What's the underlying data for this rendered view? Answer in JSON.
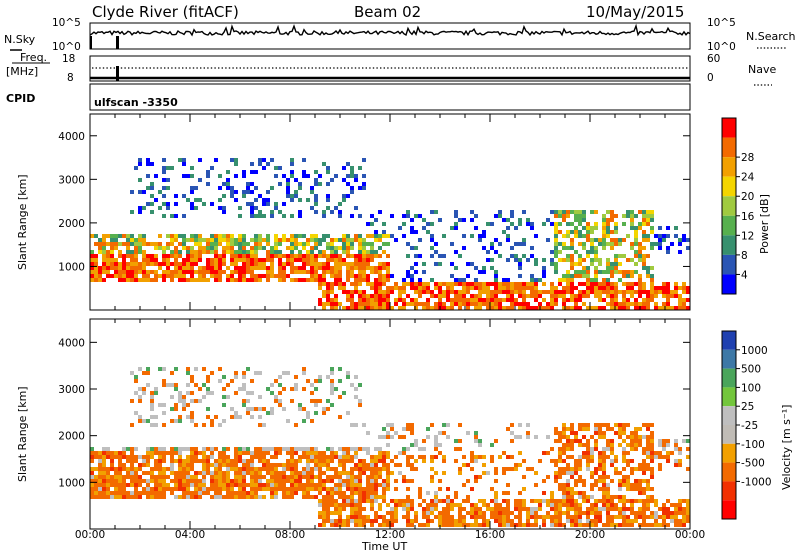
{
  "header": {
    "station": "Clyde River (fitACF)",
    "beam": "Beam 02",
    "date": "10/May/2015",
    "cpid_value": "ulfscan -3350"
  },
  "strips": {
    "nsky_label": "N.Sky",
    "nsky_ticks": [
      "10^5",
      "10^0"
    ],
    "nsearch_label": "N.Search",
    "nsearch_ticks": [
      "10^5",
      "10^0"
    ],
    "freq_label_1": "Freq.",
    "freq_label_2": "[MHz]",
    "freq_ticks": [
      "18",
      "8"
    ],
    "nave_label": "Nave",
    "nave_ticks": [
      "60",
      "0"
    ],
    "cpid_label": "CPID"
  },
  "colors": {
    "power": [
      "#0000ff",
      "#2a55b4",
      "#37906e",
      "#57b04e",
      "#a0ca40",
      "#f4d500",
      "#f2a000",
      "#f36a00",
      "#ff0000"
    ],
    "velocity": [
      "#1f40b0",
      "#3d78a6",
      "#4aa55b",
      "#73c63c",
      "#bfbfbf",
      "#c0bcb6",
      "#f2a000",
      "#f36a00",
      "#f23000",
      "#ff0000"
    ]
  },
  "chart_data": [
    {
      "type": "heatmap",
      "quantity": "power",
      "ylabel": "Slant Range [km]",
      "yticks": [
        "1000",
        "2000",
        "3000",
        "4000"
      ],
      "xticks": [
        "00:00",
        "04:00",
        "08:00",
        "12:00",
        "16:00",
        "20:00",
        "00:00"
      ],
      "colorbar_label": "Power [dB]",
      "colorbar_ticks": [
        "4",
        "8",
        "12",
        "16",
        "20",
        "24",
        "28"
      ],
      "ylim": [
        0,
        4500
      ],
      "xlim_hours": [
        0,
        24
      ]
    },
    {
      "type": "heatmap",
      "quantity": "velocity",
      "ylabel": "Slant Range [km]",
      "yticks": [
        "1000",
        "2000",
        "3000",
        "4000"
      ],
      "xticks": [
        "00:00",
        "04:00",
        "08:00",
        "12:00",
        "16:00",
        "20:00",
        "00:00"
      ],
      "xlabel": "Time UT",
      "colorbar_label": "Velocity [m s⁻¹]",
      "colorbar_ticks": [
        "1000",
        "500",
        "100",
        "25",
        "-25",
        "-100",
        "-500",
        "-1000"
      ],
      "ylim": [
        0,
        4500
      ],
      "xlim_hours": [
        0,
        24
      ]
    }
  ]
}
